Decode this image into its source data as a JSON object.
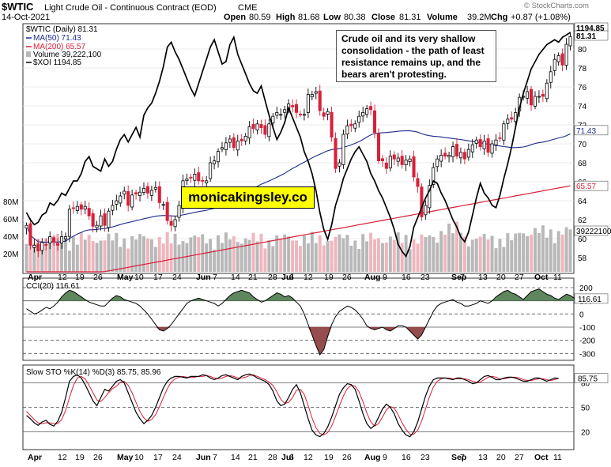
{
  "header": {
    "symbol": "$WTIC",
    "name": "Light Crude Oil - Continuous Contract (EOD)",
    "exchange": "CME",
    "date": "14-Oct-2021",
    "open_label": "Open",
    "open": "80.59",
    "high_label": "High",
    "high": "81.68",
    "low_label": "Low",
    "low": "80.38",
    "close_label": "Close",
    "close": "81.31",
    "volume_label": "Volume",
    "volume": "39.2M",
    "chg_label": "Chg",
    "chg": "+0.87 (+1.08%)",
    "watermark": "© StockCharts.com"
  },
  "annotation": "Crude oil and its very shallow consolidation - the path of least resistance remains up, and the bears aren't protesting.",
  "brand_label": "monicakingsley.co",
  "colors": {
    "up": "#000000",
    "down": "#d8203a",
    "ma50": "#1c2a8c",
    "ma200": "#d8203a",
    "xoi": "#000000",
    "vol_up": "#b8b8b8",
    "vol_down": "#efb6bd",
    "cci_fill": "#4d7a4d",
    "cci_fill_neg": "#8b3a3a",
    "sto_d": "#d8203a"
  },
  "chart_data": [
    {
      "type": "candlestick",
      "panel": "price",
      "legend": [
        {
          "label": "$WTIC (Daily) 81.31",
          "value": "81.31"
        },
        {
          "label": "MA(50) 71.43",
          "value": "71.43"
        },
        {
          "label": "MA(200) 65.57",
          "value": "65.57"
        },
        {
          "label": "Volume 39,222,100",
          "value": "39222100"
        },
        {
          "label": "$XOI 1194.85",
          "value": "1194.85"
        }
      ],
      "y_ticks": [
        58,
        60,
        62,
        64,
        66,
        68,
        70,
        72,
        74,
        76,
        78,
        80
      ],
      "ylim": [
        56.5,
        82.5
      ],
      "vol_ticks": [
        "20M",
        "40M",
        "60M",
        "80M"
      ],
      "vol_ylim_millions": [
        0,
        100
      ],
      "right_labels": {
        "xoi": "1194.85",
        "close": "81.31",
        "ma50": "71.43",
        "ma200": "65.57",
        "volume": "39222100"
      },
      "x_labels": [
        "Apr",
        "12",
        "19",
        "26",
        "May",
        "10",
        "17",
        "24",
        "Jun",
        "7",
        "14",
        "21",
        "28",
        "Jul",
        "6",
        "12",
        "19",
        "26",
        "Aug",
        "9",
        "16",
        "23",
        "Sep",
        "7",
        "13",
        "20",
        "27",
        "Oct",
        "11"
      ],
      "series": [
        {
          "name": "$WTIC",
          "close": [
            61.4,
            59.3,
            59.3,
            58.7,
            59.6,
            59.3,
            60.2,
            59.6,
            59.3,
            60.2,
            60.2,
            63.1,
            63.2,
            63.4,
            63.1,
            63.4,
            62.4,
            61.3,
            61.4,
            62.4,
            61.4,
            62.9,
            63.5,
            64.0,
            64.5,
            65.0,
            63.5,
            64.6,
            64.7,
            64.9,
            65.3,
            64.8,
            65.1,
            65.4,
            63.8,
            63.6,
            61.9,
            61.4,
            62.0,
            63.5,
            66.1,
            66.3,
            66.4,
            66.8,
            66.1,
            66.1,
            66.1,
            68.0,
            68.2,
            69.2,
            69.6,
            70.1,
            70.5,
            69.6,
            70.3,
            70.3,
            70.8,
            71.8,
            71.6,
            72.1,
            71.7,
            71.0,
            72.1,
            72.9,
            73.3,
            73.1,
            73.6,
            74.2,
            73.9,
            73.3,
            73.1,
            73.1,
            75.2,
            75.2,
            75.5,
            73.5,
            72.9,
            73.4,
            70.7,
            67.4,
            68.0,
            71.0,
            71.9,
            71.9,
            72.1,
            72.9,
            73.3,
            73.7,
            73.6,
            71.2,
            68.2,
            68.2,
            67.4,
            68.7,
            68.4,
            68.5,
            67.8,
            68.3,
            68.4,
            66.5,
            65.5,
            62.3,
            63.5,
            65.6,
            67.5,
            68.4,
            68.8,
            68.7,
            68.8,
            69.7,
            68.7,
            69.1,
            68.4,
            69.4,
            69.9,
            70.4,
            69.7,
            70.3,
            69.1,
            70.0,
            70.4,
            70.6,
            72.1,
            72.6,
            72.6,
            73.3,
            74.9,
            75.0,
            75.5,
            74.1,
            75.0,
            75.0,
            75.0,
            76.4,
            77.6,
            78.9,
            79.3,
            78.3,
            80.5,
            81.3
          ]
        },
        {
          "name": "$XOI",
          "norm": [
            0.25,
            0.22,
            0.2,
            0.21,
            0.24,
            0.25,
            0.29,
            0.28,
            0.3,
            0.33,
            0.32,
            0.35,
            0.38,
            0.38,
            0.41,
            0.46,
            0.48,
            0.44,
            0.43,
            0.42,
            0.47,
            0.44,
            0.46,
            0.51,
            0.55,
            0.57,
            0.54,
            0.57,
            0.6,
            0.56,
            0.65,
            0.68,
            0.7,
            0.74,
            0.79,
            0.85,
            0.93,
            0.95,
            0.91,
            0.88,
            0.84,
            0.8,
            0.76,
            0.73,
            0.78,
            0.83,
            0.88,
            0.93,
            0.96,
            0.91,
            0.86,
            0.87,
            0.94,
            0.97,
            0.9,
            0.86,
            0.82,
            0.78,
            0.75,
            0.74,
            0.77,
            0.71,
            0.65,
            0.6,
            0.55,
            0.58,
            0.62,
            0.68,
            0.64,
            0.6,
            0.56,
            0.5,
            0.46,
            0.41,
            0.34,
            0.25,
            0.18,
            0.14,
            0.2,
            0.28,
            0.33,
            0.39,
            0.43,
            0.47,
            0.5,
            0.52,
            0.49,
            0.46,
            0.41,
            0.38,
            0.34,
            0.31,
            0.27,
            0.23,
            0.18,
            0.12,
            0.09,
            0.07,
            0.11,
            0.19,
            0.23,
            0.27,
            0.31,
            0.34,
            0.38,
            0.37,
            0.33,
            0.3,
            0.26,
            0.22,
            0.19,
            0.15,
            0.13,
            0.17,
            0.24,
            0.31,
            0.37,
            0.33,
            0.31,
            0.28,
            0.27,
            0.32,
            0.39,
            0.45,
            0.52,
            0.6,
            0.68,
            0.74,
            0.79,
            0.84,
            0.87,
            0.9,
            0.92,
            0.94,
            0.95,
            0.96,
            0.95,
            0.97,
            0.98,
            0.99
          ]
        },
        {
          "name": "MA(50)",
          "start": 58.5,
          "end": 71.43
        },
        {
          "name": "MA(200)",
          "start": 55.0,
          "end": 65.57
        }
      ]
    },
    {
      "type": "line",
      "panel": "cci",
      "legend": [
        {
          "label": "CCI(20) 116.61",
          "value": "116.61"
        }
      ],
      "y_ticks": [
        200,
        100,
        0,
        -100,
        -200,
        -300
      ],
      "ylim": [
        -340,
        260
      ],
      "series": [
        {
          "name": "CCI(20)",
          "values": [
            40,
            20,
            0,
            10,
            30,
            50,
            40,
            60,
            90,
            130,
            160,
            180,
            170,
            150,
            130,
            110,
            90,
            80,
            70,
            60,
            60,
            90,
            120,
            140,
            130,
            110,
            100,
            90,
            80,
            60,
            30,
            0,
            -40,
            -80,
            -120,
            -130,
            -110,
            -80,
            -40,
            0,
            40,
            80,
            100,
            110,
            120,
            110,
            100,
            90,
            80,
            60,
            80,
            110,
            140,
            160,
            170,
            180,
            170,
            160,
            130,
            110,
            90,
            100,
            120,
            140,
            160,
            150,
            130,
            140,
            120,
            90,
            60,
            0,
            -80,
            -160,
            -240,
            -310,
            -270,
            -170,
            -80,
            -20,
            20,
            40,
            60,
            50,
            30,
            0,
            -40,
            -90,
            -110,
            -120,
            -110,
            -100,
            -120,
            -130,
            -110,
            -90,
            -90,
            -100,
            -130,
            -160,
            -190,
            -160,
            -100,
            -40,
            20,
            60,
            80,
            90,
            100,
            110,
            90,
            80,
            60,
            60,
            70,
            80,
            100,
            90,
            80,
            100,
            130,
            150,
            170,
            180,
            160,
            150,
            130,
            110,
            140,
            170,
            180,
            190,
            170,
            150,
            140,
            120,
            110,
            130,
            150,
            140,
            120,
            116.6
          ]
        }
      ]
    },
    {
      "type": "line",
      "panel": "sto",
      "legend": [
        {
          "label": "Slow STO %K(14) %D(3) 85.75, 85.96",
          "value": "85.75"
        }
      ],
      "y_ticks": [
        80,
        50,
        20
      ],
      "ylim": [
        0,
        100
      ],
      "series": [
        {
          "name": "%K",
          "values": [
            40,
            36,
            31,
            28,
            32,
            34,
            29,
            27,
            33,
            44,
            62,
            82,
            88,
            90,
            86,
            78,
            68,
            58,
            52,
            62,
            72,
            70,
            76,
            82,
            84,
            80,
            68,
            56,
            44,
            36,
            30,
            34,
            40,
            50,
            62,
            74,
            82,
            86,
            88,
            88,
            87,
            86,
            88,
            88,
            88,
            90,
            89,
            86,
            84,
            86,
            89,
            90,
            88,
            86,
            84,
            88,
            90,
            91,
            89,
            86,
            84,
            82,
            78,
            70,
            58,
            52,
            54,
            62,
            72,
            78,
            68,
            52,
            36,
            22,
            16,
            14,
            18,
            26,
            38,
            52,
            66,
            74,
            79,
            78,
            72,
            58,
            42,
            30,
            24,
            28,
            38,
            48,
            54,
            50,
            42,
            30,
            22,
            16,
            14,
            20,
            32,
            48,
            64,
            76,
            84,
            86,
            86,
            86,
            85,
            84,
            86,
            86,
            84,
            82,
            79,
            80,
            84,
            88,
            89,
            87,
            84,
            84,
            86,
            87,
            87,
            86,
            84,
            82,
            82,
            84,
            86,
            86,
            84,
            82,
            84,
            86,
            85.75
          ]
        },
        {
          "name": "%D",
          "values": [
            45,
            40,
            35,
            31,
            30,
            31,
            31,
            30,
            30,
            35,
            46,
            62,
            77,
            86,
            88,
            85,
            77,
            68,
            59,
            57,
            62,
            68,
            73,
            76,
            81,
            82,
            77,
            68,
            56,
            45,
            37,
            33,
            35,
            41,
            51,
            62,
            73,
            81,
            85,
            87,
            88,
            87,
            87,
            87,
            88,
            88,
            89,
            88,
            86,
            85,
            86,
            88,
            89,
            88,
            86,
            86,
            87,
            89,
            90,
            88,
            86,
            84,
            81,
            77,
            69,
            60,
            55,
            56,
            62,
            71,
            72,
            66,
            52,
            37,
            25,
            18,
            16,
            19,
            27,
            39,
            52,
            64,
            73,
            77,
            76,
            69,
            57,
            43,
            32,
            27,
            30,
            38,
            47,
            51,
            49,
            41,
            31,
            23,
            17,
            17,
            22,
            33,
            48,
            63,
            75,
            82,
            85,
            86,
            86,
            85,
            85,
            85,
            85,
            84,
            82,
            81,
            81,
            84,
            87,
            88,
            87,
            85,
            85,
            86,
            87,
            87,
            86,
            84,
            83,
            83,
            84,
            85,
            85,
            84,
            83,
            84,
            85.96
          ]
        }
      ]
    }
  ]
}
